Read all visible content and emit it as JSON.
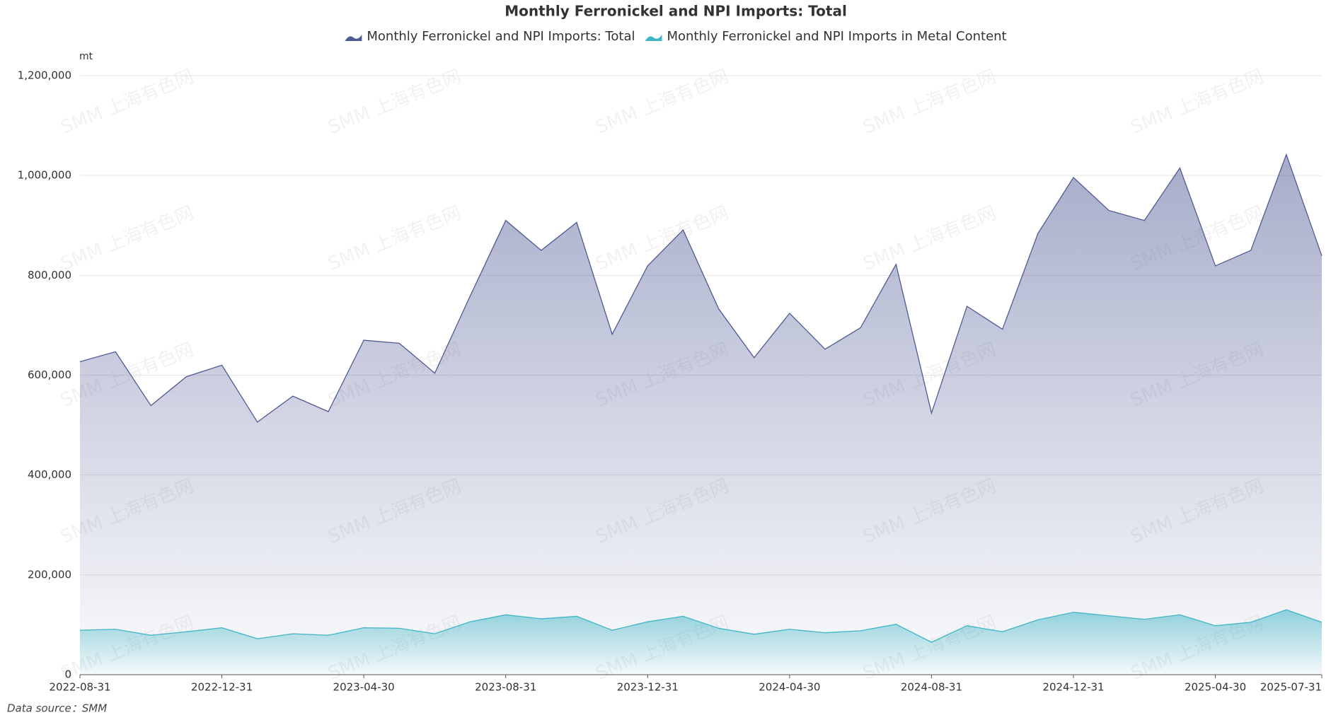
{
  "chart_data": {
    "type": "area",
    "title": "Monthly Ferronickel and NPI Imports: Total",
    "y_unit": "mt",
    "source": "Data source：SMM",
    "watermark": "SMM 上海有色网",
    "categories": [
      "2022-08-31",
      null,
      null,
      null,
      "2022-12-31",
      null,
      null,
      null,
      "2023-04-30",
      null,
      null,
      null,
      "2023-08-31",
      null,
      null,
      null,
      "2023-12-31",
      null,
      null,
      null,
      "2024-04-30",
      null,
      null,
      null,
      "2024-08-31",
      null,
      null,
      null,
      "2024-12-31",
      null,
      null,
      null,
      "2025-04-30",
      null,
      null,
      "2025-07-31"
    ],
    "series": [
      {
        "name": "Monthly Ferronickel and NPI Imports: Total",
        "color": "#4e5a94",
        "values": [
          627000,
          647000,
          539000,
          597000,
          620000,
          506000,
          558000,
          527000,
          670000,
          664000,
          604000,
          759000,
          910000,
          850000,
          906000,
          682000,
          819000,
          891000,
          733000,
          635000,
          724000,
          652000,
          695000,
          822000,
          524000,
          738000,
          692000,
          884000,
          996000,
          930000,
          910000,
          1015000,
          819000,
          850000,
          1042000,
          839000
        ]
      },
      {
        "name": "Monthly Ferronickel and NPI Imports in Metal Content",
        "color": "#3fb5c6",
        "values": [
          89000,
          91000,
          79000,
          86000,
          94000,
          72000,
          82000,
          79000,
          94000,
          93000,
          82000,
          106000,
          120000,
          112000,
          117000,
          89000,
          106000,
          117000,
          93000,
          81000,
          91000,
          84000,
          88000,
          101000,
          65000,
          98000,
          86000,
          110000,
          125000,
          118000,
          111000,
          120000,
          98000,
          105000,
          130000,
          105000
        ]
      }
    ],
    "ylim": [
      0,
      1200000
    ],
    "yticks": [
      0,
      {
        "value": 200000,
        "label": "200,000"
      },
      {
        "value": 400000,
        "label": "400,000"
      },
      {
        "value": 600000,
        "label": "600,000"
      },
      {
        "value": 800000,
        "label": "800,000"
      },
      {
        "value": 1000000,
        "label": "1,000,000"
      },
      {
        "value": 1200000,
        "label": "1,200,000"
      }
    ],
    "grid": true
  }
}
